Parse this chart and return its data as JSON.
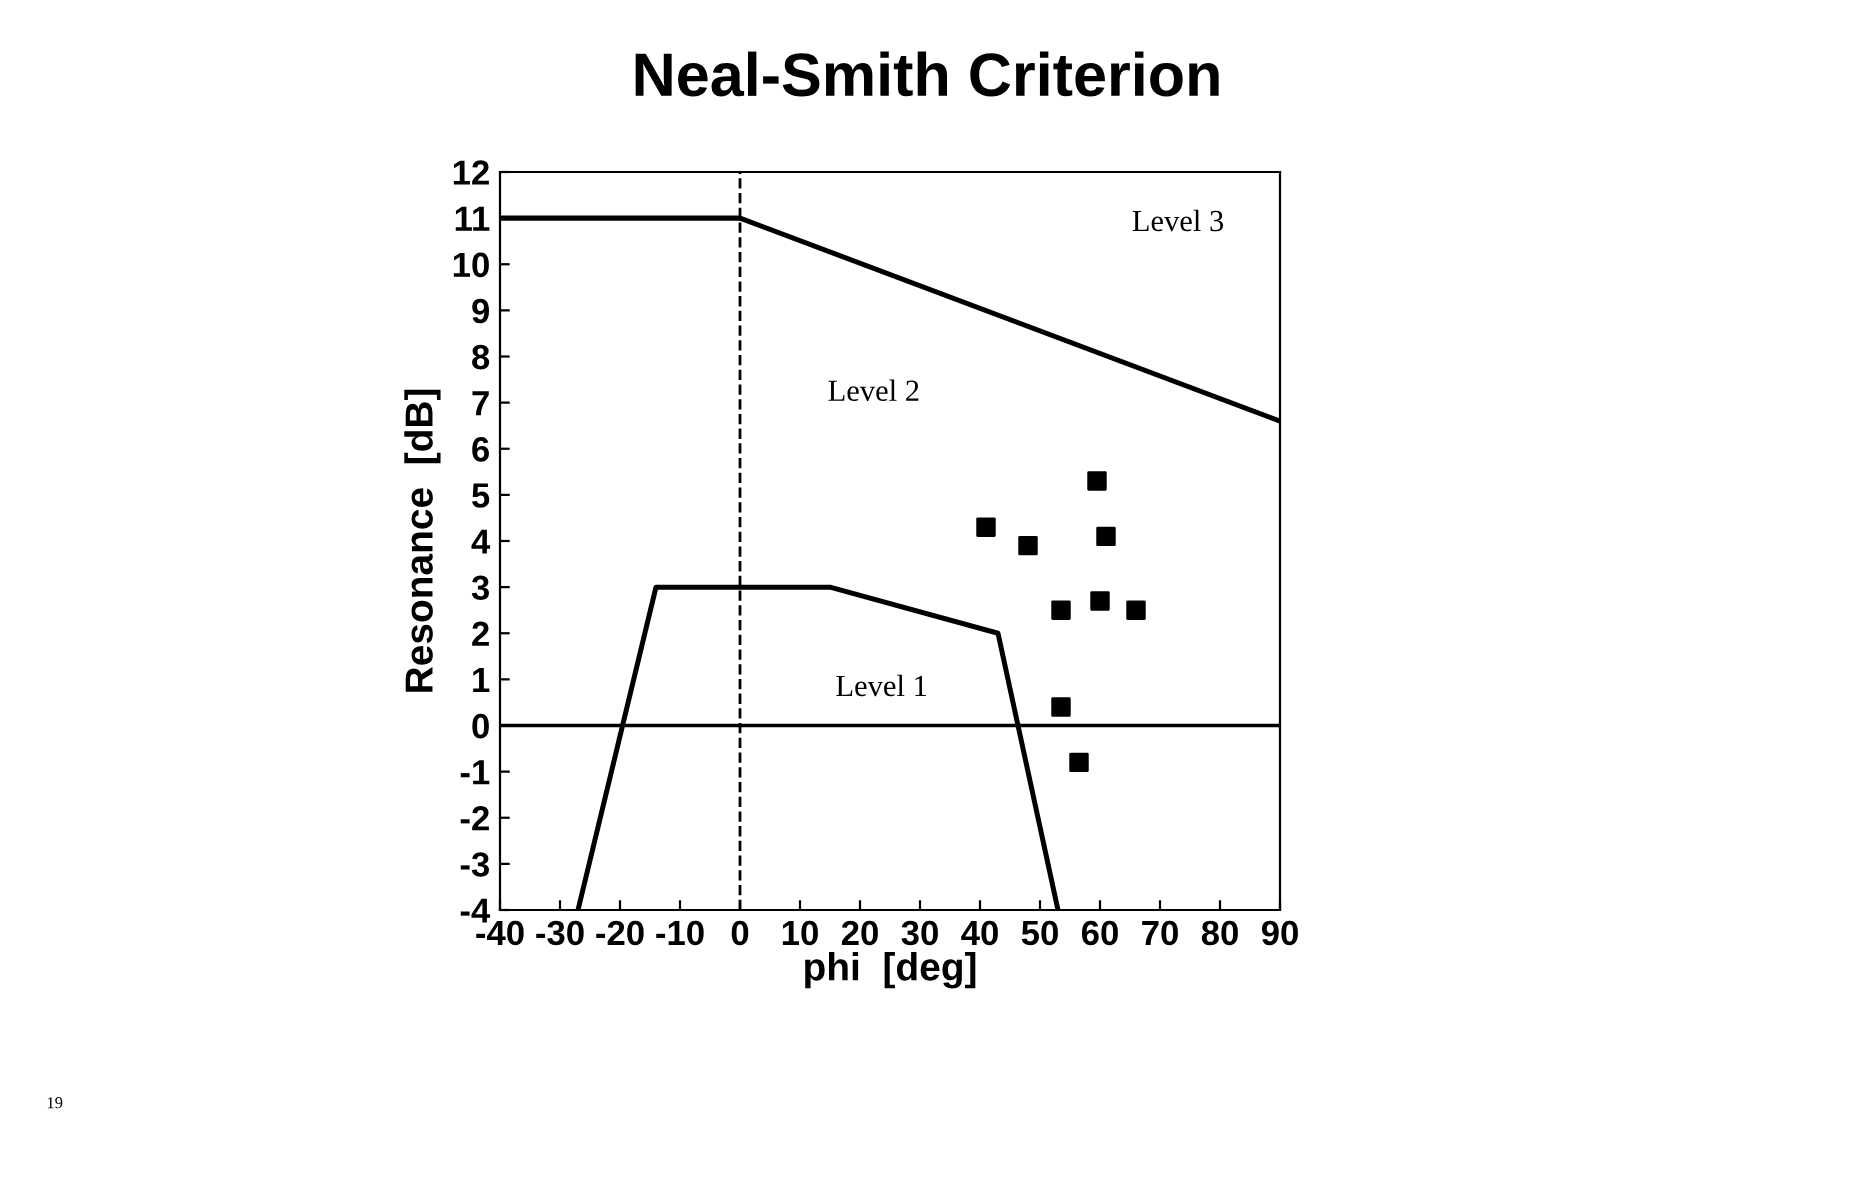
{
  "chart_data": {
    "type": "line",
    "title": "Neal-Smith Criterion",
    "xlabel": "phi  [deg]",
    "ylabel": "Resonance  [dB]",
    "series": [
      {
        "color": "#000000",
        "x": [
          -40,
          0,
          90
        ],
        "values": [
          11,
          11,
          6.6
        ]
      },
      {
        "color": "#000000",
        "x": [
          -27,
          -14,
          15,
          43,
          53
        ],
        "values": [
          -4,
          3,
          3,
          2,
          -4
        ]
      },
      {
        "type": "scatter",
        "color": "#000000",
        "marker": "square",
        "x": [
          41,
          48,
          53.5,
          59.5,
          61,
          60,
          66,
          53.5,
          56.5
        ],
        "values": [
          4.3,
          3.9,
          2.5,
          5.3,
          4.1,
          2.7,
          2.5,
          0.4,
          -0.8
        ]
      }
    ],
    "ref_lines": [
      {
        "axis": "y",
        "value": 0,
        "line_style": "solid"
      },
      {
        "axis": "x",
        "value": 0,
        "line_style": "dashed"
      }
    ],
    "annotations": [
      "Level 3",
      "Level 2",
      "Level 1",
      "19"
    ],
    "xlim": [
      -40,
      90
    ],
    "xticks": [
      -40,
      -30,
      -20,
      -10,
      0,
      10,
      20,
      30,
      40,
      50,
      60,
      70,
      80,
      90
    ],
    "ylim": [
      -4,
      12
    ],
    "yticks": [
      -4,
      -3,
      -2,
      -1,
      0,
      1,
      2,
      3,
      4,
      5,
      6,
      7,
      8,
      9,
      10,
      11,
      12
    ],
    "grid": false,
    "legend": false
  }
}
